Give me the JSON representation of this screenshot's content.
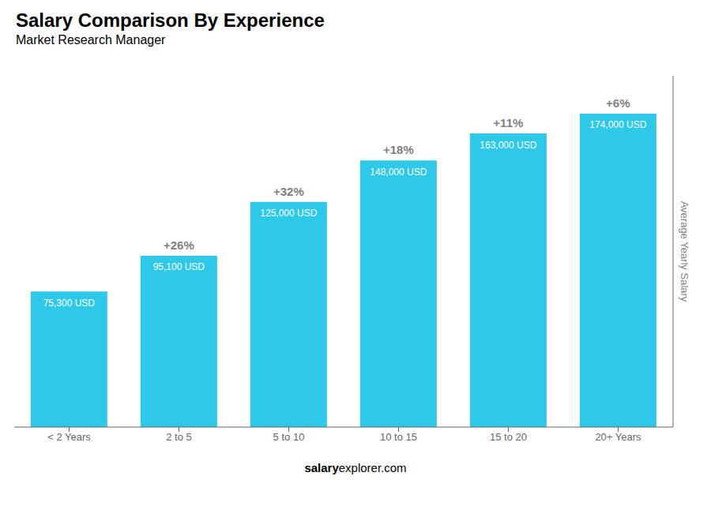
{
  "chart_data": {
    "type": "bar",
    "title": "Salary Comparison By Experience",
    "subtitle": "Market Research Manager",
    "categories": [
      "< 2 Years",
      "2 to 5",
      "5 to 10",
      "10 to 15",
      "15 to 20",
      "20+ Years"
    ],
    "values": [
      75300,
      95100,
      125000,
      148000,
      163000,
      174000
    ],
    "value_labels": [
      "75,300 USD",
      "95,100 USD",
      "125,000 USD",
      "148,000 USD",
      "163,000 USD",
      "174,000 USD"
    ],
    "data_labels": true,
    "annotations": [
      null,
      "+26%",
      "+32%",
      "+18%",
      "+11%",
      "+6%"
    ],
    "ylabel": "Average Yearly Salary",
    "footer": [
      "salary",
      "explorer.com"
    ],
    "color": "#2ec9e8",
    "ylim": [
      0,
      195000
    ],
    "yticks": [],
    "tick_labels": "x"
  }
}
